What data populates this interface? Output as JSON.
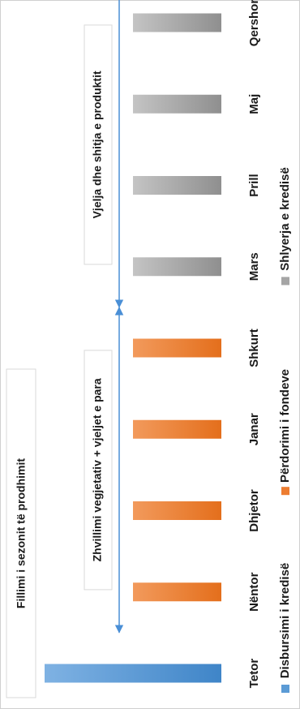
{
  "chart_data": {
    "type": "bar",
    "orientation": "rotated-90",
    "categories": [
      "Tetor",
      "Nëntor",
      "Dhjetor",
      "Janar",
      "Shkurt",
      "Mars",
      "Prill",
      "Maj",
      "Qershor"
    ],
    "series": [
      {
        "name": "Disbursimi i kredisë",
        "values": [
          1,
          0,
          0,
          0,
          0,
          0,
          0,
          0,
          0
        ],
        "color": "#5b9bd5"
      },
      {
        "name": "Përdorimi i fondeve",
        "values": [
          0,
          0.5,
          0.5,
          0.5,
          0.5,
          0,
          0,
          0,
          0
        ],
        "color": "#ed7d31"
      },
      {
        "name": "Shlyerja e kredisë",
        "values": [
          0,
          0,
          0,
          0,
          0,
          0.5,
          0.5,
          0.5,
          0.5
        ],
        "color": "#a5a5a5"
      }
    ],
    "annotations": [
      {
        "text": "Fillimi i sezonit të prodhimit",
        "from": "Tetor",
        "to": "Tetor"
      },
      {
        "text": "Zhvillimi vegjetativ + vjeljet e para",
        "from": "Nëntor",
        "to": "Shkurt"
      },
      {
        "text": "Vjelja dhe shitja e produktit",
        "from": "Mars",
        "to": "Qershor"
      }
    ],
    "legend_position": "bottom",
    "grid": false
  }
}
